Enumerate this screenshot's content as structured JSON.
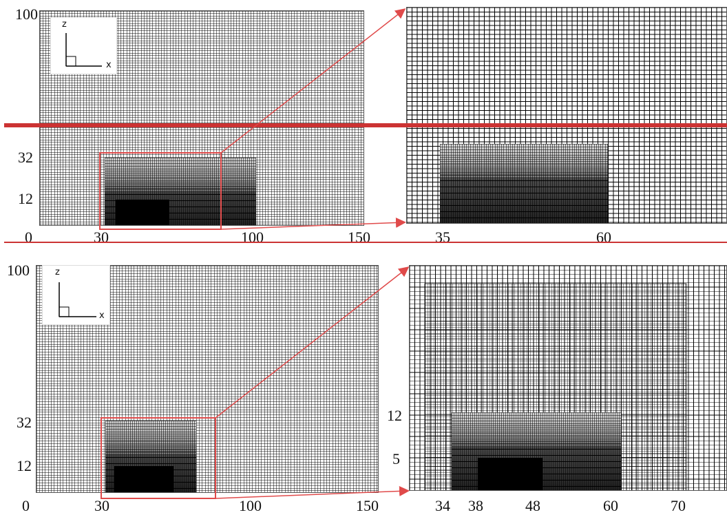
{
  "top": {
    "left_panel": {
      "y_ticks": [
        "100",
        "32",
        "12"
      ],
      "x_ticks": [
        "0",
        "30",
        "100",
        "150"
      ]
    },
    "zoom_panel": {
      "x_ticks": [
        "35",
        "60"
      ]
    },
    "axes_indicator": {
      "vertical": "z",
      "horizontal": "x"
    }
  },
  "bottom": {
    "left_panel": {
      "y_ticks": [
        "100",
        "32",
        "12"
      ],
      "x_ticks": [
        "0",
        "30",
        "100",
        "150"
      ]
    },
    "zoom_panel": {
      "y_ticks": [
        "12",
        "5"
      ],
      "x_ticks": [
        "34",
        "38",
        "48",
        "60",
        "70"
      ]
    },
    "axes_indicator": {
      "vertical": "z",
      "horizontal": "x"
    }
  },
  "colors": {
    "highlight": "#e04a4a",
    "divider": "#cc3333",
    "grid": "#000000"
  }
}
